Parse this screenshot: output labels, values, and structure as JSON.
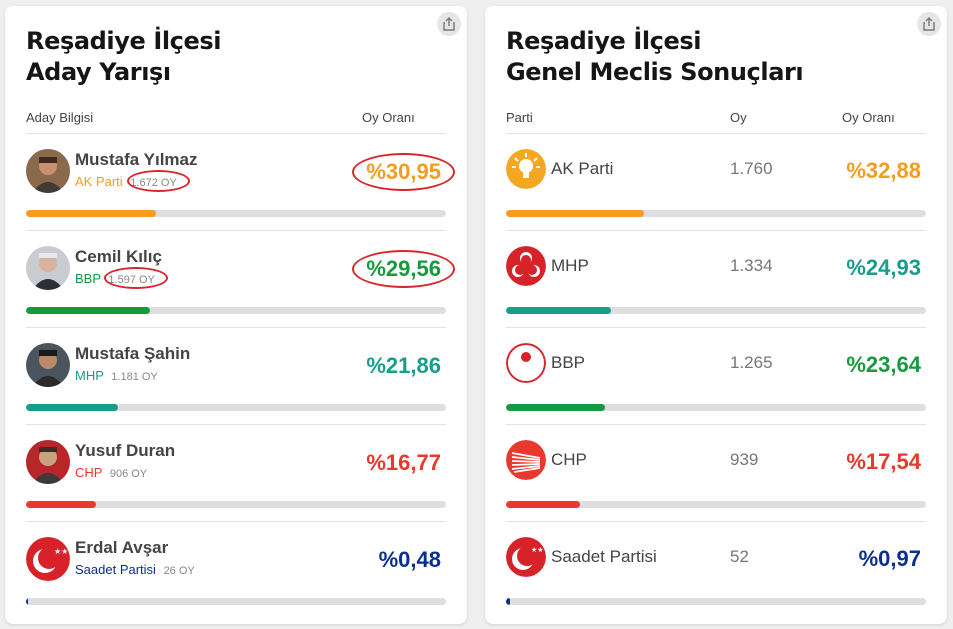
{
  "colors": {
    "akp": "#f39c1f",
    "mhp": "#179e8a",
    "bbp": "#159a3e",
    "chp": "#e9382d",
    "saadet": "#0a2f8e",
    "highlight": "#d8262b"
  },
  "left_card": {
    "title_line1": "Reşadiye İlçesi",
    "title_line2": "Aday Yarışı",
    "col_candidate": "Aday Bilgisi",
    "col_rate": "Oy Oranı",
    "share_icon": "share-icon",
    "candidates": [
      {
        "name": "Mustafa Yılmaz",
        "party": "AK Parti",
        "votes": "1.672 OY",
        "pct": "%30,95",
        "share": 30.95,
        "color": "#f39c1f",
        "highlighted": true
      },
      {
        "name": "Cemil Kılıç",
        "party": "BBP",
        "votes": "1.597 OY",
        "pct": "%29,56",
        "share": 29.56,
        "color": "#159a3e",
        "highlighted": true
      },
      {
        "name": "Mustafa Şahin",
        "party": "MHP",
        "votes": "1.181 OY",
        "pct": "%21,86",
        "share": 21.86,
        "color": "#179e8a",
        "highlighted": false
      },
      {
        "name": "Yusuf Duran",
        "party": "CHP",
        "votes": "906 OY",
        "pct": "%16,77",
        "share": 16.77,
        "color": "#e9382d",
        "highlighted": false
      },
      {
        "name": "Erdal Avşar",
        "party": "Saadet Partisi",
        "votes": "26 OY",
        "pct": "%0,48",
        "share": 0.48,
        "color": "#0a2f8e",
        "highlighted": false
      }
    ]
  },
  "right_card": {
    "title_line1": "Reşadiye İlçesi",
    "title_line2": "Genel Meclis Sonuçları",
    "col_party": "Parti",
    "col_votes": "Oy",
    "col_rate": "Oy Oranı",
    "share_icon": "share-icon",
    "parties": [
      {
        "name": "AK Parti",
        "votes": "1.760",
        "pct": "%32,88",
        "share": 32.88,
        "color": "#f39c1f",
        "logo": "akp-bulb-logo"
      },
      {
        "name": "MHP",
        "votes": "1.334",
        "pct": "%24,93",
        "share": 24.93,
        "color": "#179e8a",
        "logo": "mhp-crescents-logo"
      },
      {
        "name": "BBP",
        "votes": "1.265",
        "pct": "%23,64",
        "share": 23.64,
        "color": "#159a3e",
        "logo": "bbp-rose-logo"
      },
      {
        "name": "CHP",
        "votes": "939",
        "pct": "%17,54",
        "share": 17.54,
        "color": "#e9382d",
        "logo": "chp-arrows-logo"
      },
      {
        "name": "Saadet Partisi",
        "votes": "52",
        "pct": "%0,97",
        "share": 0.97,
        "color": "#0a2f8e",
        "logo": "saadet-crescent-logo"
      }
    ]
  }
}
